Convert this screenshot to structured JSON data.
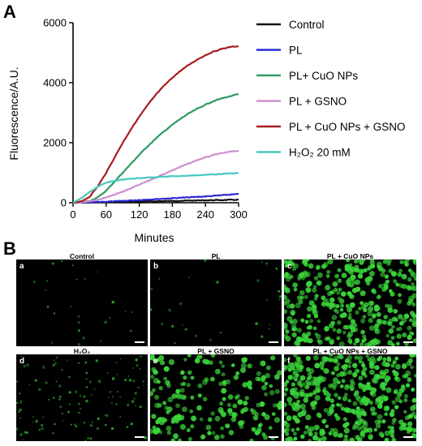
{
  "panels": {
    "a": "A",
    "b": "B"
  },
  "chart_data": {
    "type": "line",
    "xlabel": "Minutes",
    "ylabel": "Fluorescence/A.U.",
    "xlim": [
      0,
      300
    ],
    "ylim": [
      0,
      6000
    ],
    "xticks": [
      "0",
      "60",
      "120",
      "180",
      "240",
      "300"
    ],
    "yticks": [
      "0",
      "2000",
      "4000",
      "6000"
    ],
    "x": [
      0,
      15,
      30,
      45,
      60,
      75,
      90,
      105,
      120,
      135,
      150,
      165,
      180,
      195,
      210,
      225,
      240,
      255,
      270,
      285,
      300
    ],
    "legend_position": "right",
    "grid": false,
    "series": [
      {
        "name": "Control",
        "color": "#111111",
        "values": [
          0,
          5,
          10,
          15,
          20,
          25,
          30,
          35,
          40,
          45,
          50,
          55,
          60,
          65,
          70,
          75,
          80,
          85,
          90,
          95,
          100
        ]
      },
      {
        "name": "PL",
        "color": "#2b2bd6",
        "values": [
          0,
          8,
          15,
          25,
          35,
          45,
          60,
          75,
          90,
          105,
          120,
          135,
          150,
          165,
          180,
          195,
          210,
          230,
          250,
          270,
          290
        ]
      },
      {
        "name": "PL+ CuO NPs",
        "color": "#2e9a63",
        "values": [
          0,
          20,
          60,
          180,
          400,
          700,
          1000,
          1300,
          1600,
          1880,
          2140,
          2380,
          2600,
          2800,
          2980,
          3130,
          3270,
          3390,
          3480,
          3550,
          3620
        ]
      },
      {
        "name": "PL + GSNO",
        "color": "#cc8fd0",
        "values": [
          0,
          10,
          40,
          100,
          180,
          270,
          370,
          480,
          600,
          720,
          840,
          960,
          1080,
          1200,
          1310,
          1420,
          1510,
          1590,
          1650,
          1700,
          1730
        ]
      },
      {
        "name": "PL + CuO NPs + GSNO",
        "color": "#a81c1c",
        "values": [
          0,
          40,
          200,
          550,
          1000,
          1500,
          2000,
          2450,
          2870,
          3250,
          3600,
          3900,
          4170,
          4400,
          4600,
          4770,
          4920,
          5040,
          5130,
          5190,
          5220
        ]
      },
      {
        "name": "H₂O₂ 20 mM",
        "color": "#48c8c0",
        "values": [
          0,
          150,
          350,
          540,
          660,
          730,
          770,
          800,
          820,
          840,
          855,
          870,
          880,
          890,
          905,
          915,
          930,
          945,
          960,
          975,
          990
        ]
      }
    ]
  },
  "micrographs": [
    {
      "sub": "a",
      "title": "Control",
      "density": 0.03
    },
    {
      "sub": "b",
      "title": "PL",
      "density": 0.04
    },
    {
      "sub": "c",
      "title": "PL + CuO NPs",
      "density": 0.85
    },
    {
      "sub": "d",
      "title": "H₂O₂",
      "density": 0.25
    },
    {
      "sub": "e",
      "title": "PL + GSNO",
      "density": 0.45
    },
    {
      "sub": "f",
      "title": "PL + CuO NPs + GSNO",
      "density": 1.0
    }
  ],
  "colors": {
    "cell_green": "#3ad43a",
    "micro_bg": "#000000"
  }
}
